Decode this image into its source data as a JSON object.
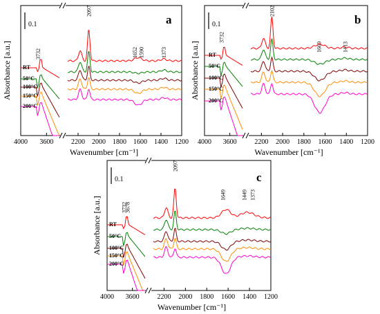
{
  "chart_data": [
    {
      "type": "line",
      "panel": "a",
      "xlabel": "Wavenumber [cm⁻¹]",
      "ylabel": "Absorbance [a.u.]",
      "x_ticks": [
        "4000",
        "3600",
        "2200",
        "2000",
        "1800",
        "1600",
        "1400",
        "1200"
      ],
      "axis_break": "between 3400 and 2300 cm⁻¹",
      "scale_bar": "0.1",
      "peak_labels": [
        {
          "text": "3732",
          "x": 3732
        },
        {
          "text": "2097",
          "x": 2097
        },
        {
          "text": "1652",
          "x": 1652
        },
        {
          "text": "1590",
          "x": 1590
        },
        {
          "text": "1373",
          "x": 1373
        }
      ],
      "series": [
        {
          "name": "RT",
          "color": "#ff0000"
        },
        {
          "name": "50°C",
          "color": "#008000"
        },
        {
          "name": "100°C",
          "color": "#800000"
        },
        {
          "name": "150°C",
          "color": "#ff8c00"
        },
        {
          "name": "200°C",
          "color": "#ff00cc"
        }
      ]
    },
    {
      "type": "line",
      "panel": "b",
      "xlabel": "Wavenumber [cm⁻¹]",
      "ylabel": "Absorbance [a.u.]",
      "x_ticks": [
        "4000",
        "3600",
        "2200",
        "2000",
        "1800",
        "1600",
        "1400",
        "1200"
      ],
      "axis_break": "between 3400 and 2300 cm⁻¹",
      "scale_bar": "0.1",
      "peak_labels": [
        {
          "text": "3732",
          "x": 3732
        },
        {
          "text": "2102",
          "x": 2102
        },
        {
          "text": "1660",
          "x": 1660
        },
        {
          "text": "1413",
          "x": 1413
        }
      ],
      "series": [
        {
          "name": "RT",
          "color": "#ff0000"
        },
        {
          "name": "50°C",
          "color": "#008000"
        },
        {
          "name": "100°C",
          "color": "#800000"
        },
        {
          "name": "150°C",
          "color": "#ff8c00"
        },
        {
          "name": "200°C",
          "color": "#ff00cc"
        }
      ]
    },
    {
      "type": "line",
      "panel": "c",
      "xlabel": "Wavenumber [cm⁻¹]",
      "ylabel": "Absorbance [a.u.]",
      "x_ticks": [
        "4000",
        "3600",
        "2200",
        "2000",
        "1800",
        "1600",
        "1400",
        "1200"
      ],
      "axis_break": "between 3400 and 2300 cm⁻¹",
      "scale_bar": "0.1",
      "peak_labels": [
        {
          "text": "3732",
          "x": 3732
        },
        {
          "text": "3678",
          "x": 3678
        },
        {
          "text": "2097",
          "x": 2097
        },
        {
          "text": "1649",
          "x": 1649
        },
        {
          "text": "1449",
          "x": 1449
        },
        {
          "text": "1373",
          "x": 1373
        }
      ],
      "series": [
        {
          "name": "RT",
          "color": "#ff0000"
        },
        {
          "name": "50°C",
          "color": "#008000"
        },
        {
          "name": "100°C",
          "color": "#800000"
        },
        {
          "name": "150°C",
          "color": "#ff8c00"
        },
        {
          "name": "200°C",
          "color": "#ff00cc"
        }
      ]
    }
  ]
}
